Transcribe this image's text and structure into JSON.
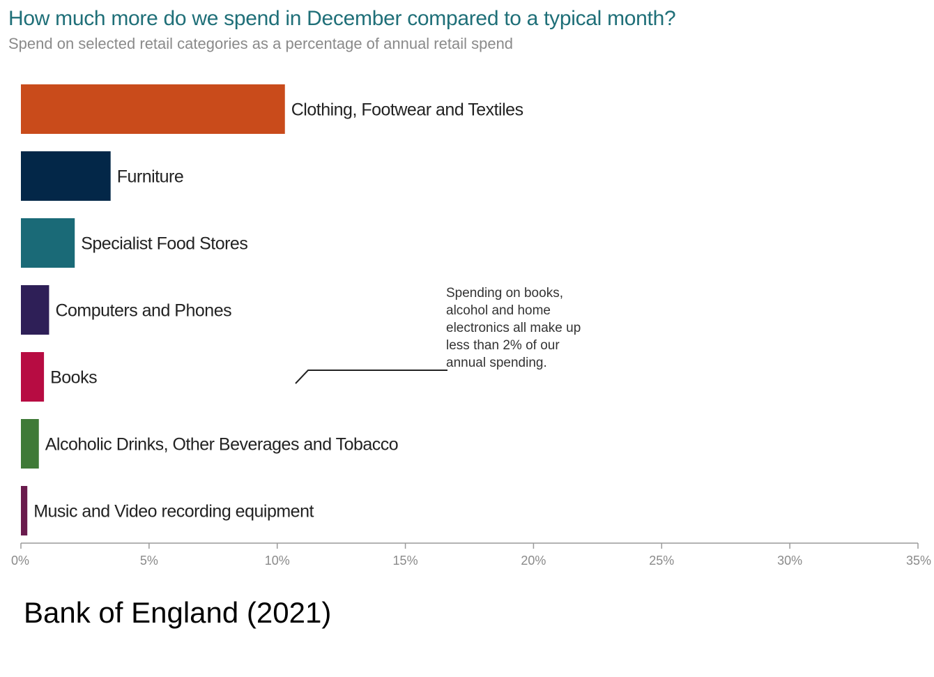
{
  "title": "How much more do we spend in December compared to a typical month?",
  "subtitle": "Spend on selected retail categories as a percentage of annual retail spend",
  "source": "Bank of England (2021)",
  "chart_data": {
    "type": "bar",
    "orientation": "horizontal",
    "categories": [
      "Clothing, Footwear and Textiles",
      "Furniture",
      "Specialist Food Stores",
      "Computers and Phones",
      "Books",
      "Alcoholic Drinks, Other Beverages and Tobacco",
      "Music and Video recording equipment"
    ],
    "values": [
      10.3,
      3.5,
      2.1,
      1.1,
      0.9,
      0.7,
      0.25
    ],
    "colors": [
      "#c94b1b",
      "#032748",
      "#1a6a77",
      "#2e1f57",
      "#b70c42",
      "#3f7a37",
      "#6a1b4d"
    ],
    "xlim": [
      0,
      35
    ],
    "xticks": [
      "0%",
      "5%",
      "10%",
      "15%",
      "20%",
      "25%",
      "30%",
      "35%"
    ],
    "grid": false,
    "annotation": {
      "lines": [
        "Spending on books,",
        "alcohol and home",
        "electronics all make up",
        "less than 2% of our",
        "annual spending."
      ]
    }
  }
}
